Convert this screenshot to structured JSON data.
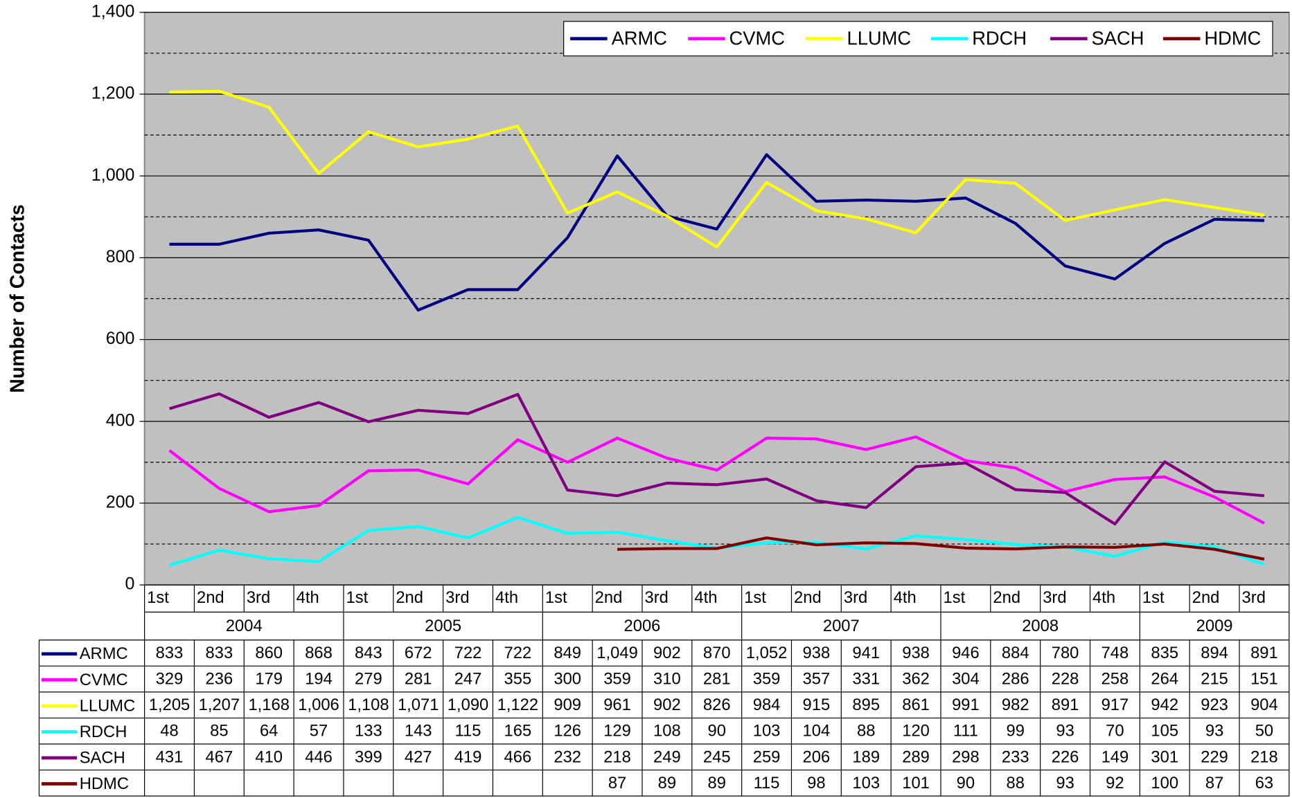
{
  "chart_data": {
    "type": "line",
    "y_label": "Number of Contacts",
    "category_groups": [
      {
        "label": "2004",
        "categories": [
          "1st",
          "2nd",
          "3rd",
          "4th"
        ]
      },
      {
        "label": "2005",
        "categories": [
          "1st",
          "2nd",
          "3rd",
          "4th"
        ]
      },
      {
        "label": "2006",
        "categories": [
          "1st",
          "2nd",
          "3rd",
          "4th"
        ]
      },
      {
        "label": "2007",
        "categories": [
          "1st",
          "2nd",
          "3rd",
          "4th"
        ]
      },
      {
        "label": "2008",
        "categories": [
          "1st",
          "2nd",
          "3rd",
          "4th"
        ]
      },
      {
        "label": "2009",
        "categories": [
          "1st",
          "2nd",
          "3rd"
        ]
      }
    ],
    "series": [
      {
        "name": "ARMC",
        "color": "#000080",
        "values": [
          833,
          833,
          860,
          868,
          843,
          672,
          722,
          722,
          849,
          1049,
          902,
          870,
          1052,
          938,
          941,
          938,
          946,
          884,
          780,
          748,
          835,
          894,
          891
        ],
        "value_labels": [
          "833",
          "833",
          "860",
          "868",
          "843",
          "672",
          "722",
          "722",
          "849",
          "1,049",
          "902",
          "870",
          "1,052",
          "938",
          "941",
          "938",
          "946",
          "884",
          "780",
          "748",
          "835",
          "894",
          "891"
        ]
      },
      {
        "name": "CVMC",
        "color": "#ff00ff",
        "values": [
          329,
          236,
          179,
          194,
          279,
          281,
          247,
          355,
          300,
          359,
          310,
          281,
          359,
          357,
          331,
          362,
          304,
          286,
          228,
          258,
          264,
          215,
          151
        ],
        "value_labels": [
          "329",
          "236",
          "179",
          "194",
          "279",
          "281",
          "247",
          "355",
          "300",
          "359",
          "310",
          "281",
          "359",
          "357",
          "331",
          "362",
          "304",
          "286",
          "228",
          "258",
          "264",
          "215",
          "151"
        ]
      },
      {
        "name": "LLUMC",
        "color": "#ffff00",
        "values": [
          1205,
          1207,
          1168,
          1006,
          1108,
          1071,
          1090,
          1122,
          909,
          961,
          902,
          826,
          984,
          915,
          895,
          861,
          991,
          982,
          891,
          917,
          942,
          923,
          904
        ],
        "value_labels": [
          "1,205",
          "1,207",
          "1,168",
          "1,006",
          "1,108",
          "1,071",
          "1,090",
          "1,122",
          "909",
          "961",
          "902",
          "826",
          "984",
          "915",
          "895",
          "861",
          "991",
          "982",
          "891",
          "917",
          "942",
          "923",
          "904"
        ]
      },
      {
        "name": "RDCH",
        "color": "#00ffff",
        "values": [
          48,
          85,
          64,
          57,
          133,
          143,
          115,
          165,
          126,
          129,
          108,
          90,
          103,
          104,
          88,
          120,
          111,
          99,
          93,
          70,
          105,
          93,
          50
        ],
        "value_labels": [
          "48",
          "85",
          "64",
          "57",
          "133",
          "143",
          "115",
          "165",
          "126",
          "129",
          "108",
          "90",
          "103",
          "104",
          "88",
          "120",
          "111",
          "99",
          "93",
          "70",
          "105",
          "93",
          "50"
        ]
      },
      {
        "name": "SACH",
        "color": "#800080",
        "values": [
          431,
          467,
          410,
          446,
          399,
          427,
          419,
          466,
          232,
          218,
          249,
          245,
          259,
          206,
          189,
          289,
          298,
          233,
          226,
          149,
          301,
          229,
          218
        ],
        "value_labels": [
          "431",
          "467",
          "410",
          "446",
          "399",
          "427",
          "419",
          "466",
          "232",
          "218",
          "249",
          "245",
          "259",
          "206",
          "189",
          "289",
          "298",
          "233",
          "226",
          "149",
          "301",
          "229",
          "218"
        ]
      },
      {
        "name": "HDMC",
        "color": "#800000",
        "values": [
          null,
          null,
          null,
          null,
          null,
          null,
          null,
          null,
          null,
          87,
          89,
          89,
          115,
          98,
          103,
          101,
          90,
          88,
          93,
          92,
          100,
          87,
          63
        ],
        "value_labels": [
          null,
          null,
          null,
          null,
          null,
          null,
          null,
          null,
          null,
          "87",
          "89",
          "89",
          "115",
          "98",
          "103",
          "101",
          "90",
          "88",
          "93",
          "92",
          "100",
          "87",
          "63"
        ]
      }
    ],
    "ylim": [
      0,
      1400
    ],
    "yticks": [
      0,
      200,
      400,
      600,
      800,
      {
        "value": 1000,
        "label": "1,000"
      },
      {
        "value": 1200,
        "label": "1,200"
      },
      {
        "value": 1400,
        "label": "1,400"
      }
    ],
    "minor_yticks": [
      100,
      300,
      500,
      700,
      900,
      1100,
      1300
    ],
    "grid": true,
    "plot_background": "#c0c0c0",
    "legend": "top-right"
  }
}
